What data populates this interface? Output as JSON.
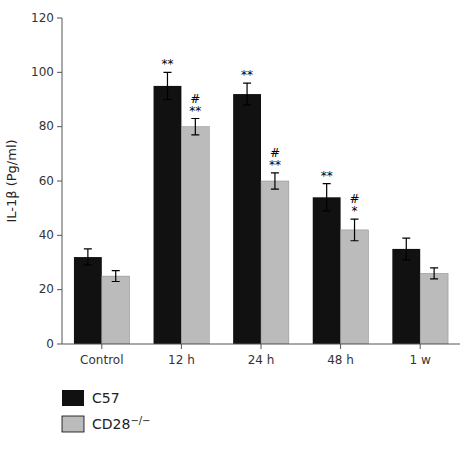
{
  "chart_data": {
    "type": "bar",
    "categories": [
      "Control",
      "12 h",
      "24 h",
      "48 h",
      "1 w"
    ],
    "series": [
      {
        "name": "C57",
        "color": "#111111",
        "values": [
          32,
          95,
          92,
          54,
          35
        ],
        "errors": [
          3,
          5,
          4,
          5,
          4
        ],
        "annotations": [
          null,
          "**",
          "**",
          "**",
          null
        ]
      },
      {
        "name": "CD28−/−",
        "color": "#bbbbbb",
        "values": [
          25,
          80,
          60,
          42,
          26
        ],
        "errors": [
          2,
          3,
          3,
          4,
          2
        ],
        "annotations": [
          null,
          "#\n**",
          "#\n**",
          "#\n*",
          null
        ]
      }
    ],
    "ylabel": "IL-1β (Pg/ml)",
    "ylim": [
      0,
      120
    ],
    "yticks": [
      0,
      20,
      40,
      60,
      80,
      100,
      120
    ],
    "grid": false,
    "legend": "bottom"
  }
}
